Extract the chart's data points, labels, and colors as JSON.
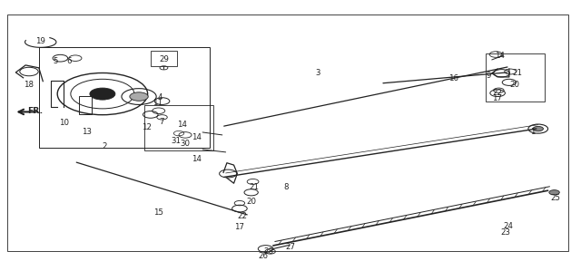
{
  "bg_color": "#ffffff",
  "line_color": "#222222",
  "fig_width": 6.4,
  "fig_height": 2.99,
  "dpi": 100
}
